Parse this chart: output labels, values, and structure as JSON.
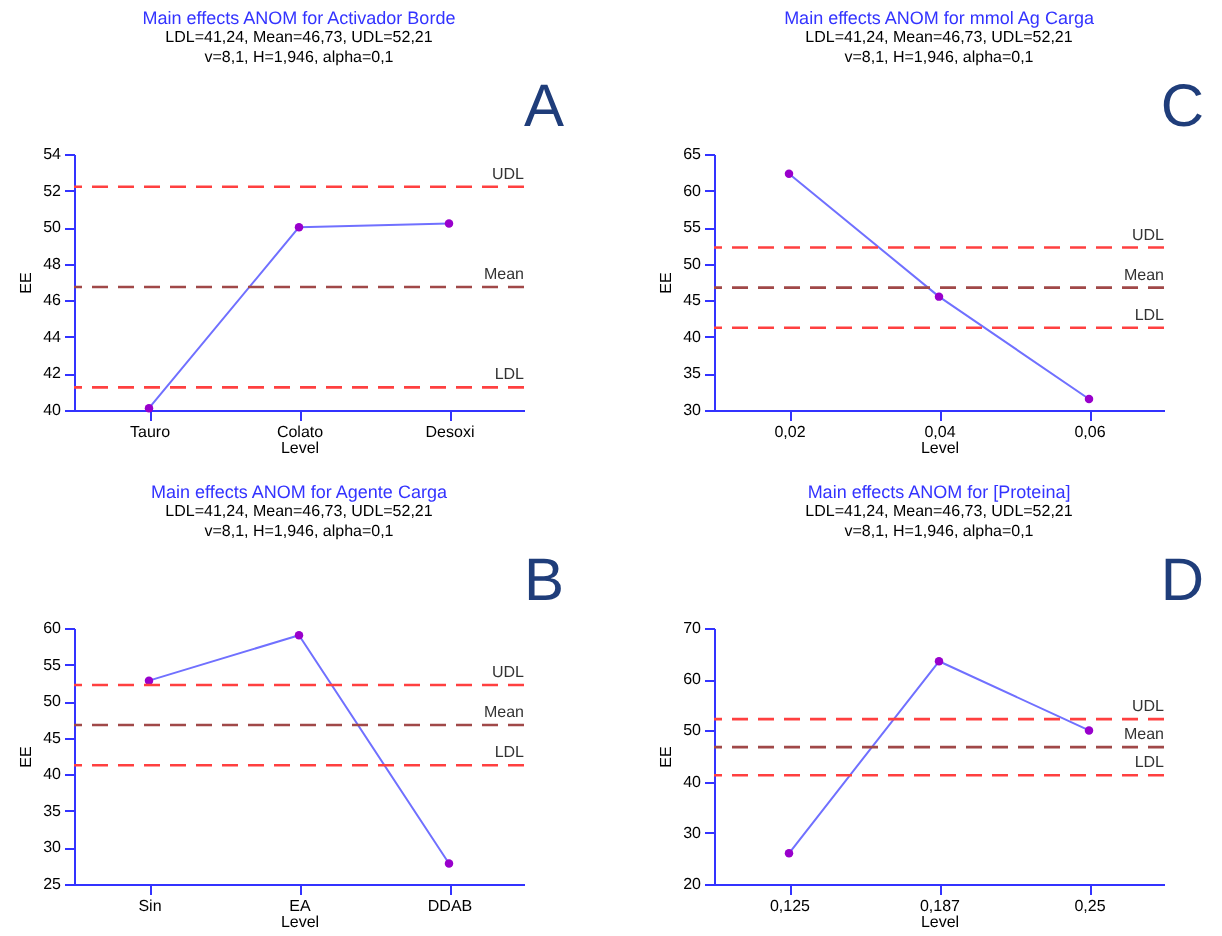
{
  "chart_data": [
    {
      "type": "line",
      "title": "Main effects ANOM for Activador Borde",
      "subtitle": "LDL=41,24, Mean=46,73, UDL=52,21\nv=8,1, H=1,946, alpha=0,1",
      "xlabel": "Level",
      "ylabel": "EE",
      "annotations": [
        "A"
      ],
      "categories": [
        "Tauro",
        "Colato",
        "Desoxi"
      ],
      "series": [
        {
          "color": "#7070ff",
          "values": [
            40.1,
            50.0,
            50.2
          ]
        }
      ],
      "ylim": [
        40,
        54
      ],
      "yticks": [
        40,
        42,
        44,
        46,
        48,
        50,
        52,
        54
      ],
      "marker": "circle",
      "line_style": "solid",
      "grid": false,
      "ref_lines": [
        {
          "axis": "y",
          "value": 52.21,
          "label": "UDL",
          "color": "#ff4040",
          "line_style": "dashed"
        },
        {
          "axis": "y",
          "value": 46.73,
          "label": "Mean",
          "color": "#a04848",
          "line_style": "dashed"
        },
        {
          "axis": "y",
          "value": 41.24,
          "label": "LDL",
          "color": "#ff4040",
          "line_style": "dashed"
        }
      ]
    },
    {
      "type": "line",
      "title": "Main effects ANOM for mmol Ag Carga",
      "subtitle": "LDL=41,24, Mean=46,73, UDL=52,21\nv=8,1, H=1,946, alpha=0,1",
      "xlabel": "Level",
      "ylabel": "EE",
      "annotations": [
        "C"
      ],
      "categories": [
        "0,02",
        "0,04",
        "0,06"
      ],
      "series": [
        {
          "color": "#7070ff",
          "values": [
            62.3,
            45.5,
            31.5
          ]
        }
      ],
      "ylim": [
        30,
        65
      ],
      "yticks": [
        30,
        35,
        40,
        45,
        50,
        55,
        60,
        65
      ],
      "marker": "circle",
      "line_style": "solid",
      "grid": false,
      "ref_lines": [
        {
          "axis": "y",
          "value": 52.21,
          "label": "UDL",
          "color": "#ff4040",
          "line_style": "dashed"
        },
        {
          "axis": "y",
          "value": 46.73,
          "label": "Mean",
          "color": "#a04848",
          "line_style": "dashed"
        },
        {
          "axis": "y",
          "value": 41.24,
          "label": "LDL",
          "color": "#ff4040",
          "line_style": "dashed"
        }
      ]
    },
    {
      "type": "line",
      "title": "Main effects ANOM for Agente Carga",
      "subtitle": "LDL=41,24, Mean=46,73, UDL=52,21\nv=8,1, H=1,946, alpha=0,1",
      "xlabel": "Level",
      "ylabel": "EE",
      "annotations": [
        "B"
      ],
      "categories": [
        "Sin",
        "EA",
        "DDAB"
      ],
      "series": [
        {
          "color": "#7070ff",
          "values": [
            52.8,
            59.0,
            27.8
          ]
        }
      ],
      "ylim": [
        25,
        60
      ],
      "yticks": [
        25,
        30,
        35,
        40,
        45,
        50,
        55,
        60
      ],
      "marker": "circle",
      "line_style": "solid",
      "grid": false,
      "ref_lines": [
        {
          "axis": "y",
          "value": 52.21,
          "label": "UDL",
          "color": "#ff4040",
          "line_style": "dashed"
        },
        {
          "axis": "y",
          "value": 46.73,
          "label": "Mean",
          "color": "#a04848",
          "line_style": "dashed"
        },
        {
          "axis": "y",
          "value": 41.24,
          "label": "LDL",
          "color": "#ff4040",
          "line_style": "dashed"
        }
      ]
    },
    {
      "type": "line",
      "title": "Main effects ANOM for [Proteina]",
      "subtitle": "LDL=41,24, Mean=46,73, UDL=52,21\nv=8,1, H=1,946, alpha=0,1",
      "xlabel": "Level",
      "ylabel": "EE",
      "annotations": [
        "D"
      ],
      "categories": [
        "0,125",
        "0,187",
        "0,25"
      ],
      "series": [
        {
          "color": "#7070ff",
          "values": [
            26,
            63.5,
            50
          ]
        }
      ],
      "ylim": [
        20,
        70
      ],
      "yticks": [
        20,
        30,
        40,
        50,
        60,
        70
      ],
      "marker": "circle",
      "line_style": "solid",
      "grid": false,
      "ref_lines": [
        {
          "axis": "y",
          "value": 52.21,
          "label": "UDL",
          "color": "#ff4040",
          "line_style": "dashed"
        },
        {
          "axis": "y",
          "value": 46.73,
          "label": "Mean",
          "color": "#a04848",
          "line_style": "dashed"
        },
        {
          "axis": "y",
          "value": 41.24,
          "label": "LDL",
          "color": "#ff4040",
          "line_style": "dashed"
        }
      ]
    }
  ]
}
